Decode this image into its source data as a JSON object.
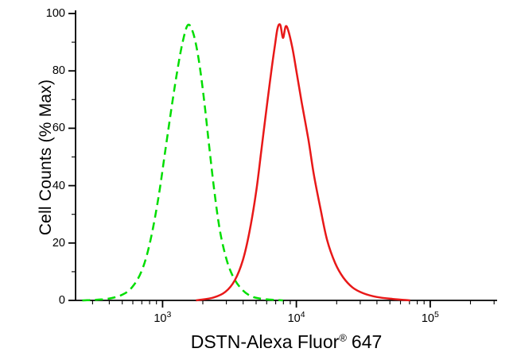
{
  "chart_data": {
    "type": "line",
    "title": "",
    "xlabel": {
      "text": "DSTN-Alexa Fluor",
      "registered_mark": "®",
      "suffix": "647"
    },
    "ylabel": "Cell Counts (% Max)",
    "x_scale": "log",
    "x_log_range": [
      2.35,
      5.5
    ],
    "ylim": [
      0,
      100
    ],
    "grid": false,
    "legend": "none",
    "y_ticks": [
      0,
      20,
      40,
      60,
      80,
      100
    ],
    "y_minor_ticks": [
      10,
      30,
      50,
      70,
      90
    ],
    "x_ticks": [
      {
        "base": "10",
        "exponent": "3",
        "log": 3
      },
      {
        "base": "10",
        "exponent": "4",
        "log": 4
      },
      {
        "base": "10",
        "exponent": "5",
        "log": 5
      }
    ],
    "series": [
      {
        "name": "control-green-dashed",
        "color": "#00dd00",
        "line_style": "dashed",
        "peak": {
          "x_log10": 3.19,
          "y_percent_max": 96
        },
        "points_log10x_y": [
          [
            2.4,
            0
          ],
          [
            2.58,
            0.5
          ],
          [
            2.7,
            2
          ],
          [
            2.78,
            5
          ],
          [
            2.85,
            11
          ],
          [
            2.91,
            21
          ],
          [
            2.97,
            36
          ],
          [
            3.02,
            52
          ],
          [
            3.07,
            68
          ],
          [
            3.11,
            80
          ],
          [
            3.15,
            90
          ],
          [
            3.19,
            96
          ],
          [
            3.23,
            93
          ],
          [
            3.27,
            84
          ],
          [
            3.31,
            70
          ],
          [
            3.35,
            53
          ],
          [
            3.39,
            37
          ],
          [
            3.43,
            24
          ],
          [
            3.48,
            14
          ],
          [
            3.53,
            8
          ],
          [
            3.59,
            4
          ],
          [
            3.66,
            1.5
          ],
          [
            3.75,
            0.5
          ],
          [
            3.9,
            0
          ]
        ]
      },
      {
        "name": "dstn-red-solid",
        "color": "#e81818",
        "line_style": "solid",
        "peak": {
          "x_log10": 3.88,
          "y_percent_max": 96
        },
        "points_log10x_y": [
          [
            3.25,
            0
          ],
          [
            3.38,
            1
          ],
          [
            3.47,
            3
          ],
          [
            3.54,
            7
          ],
          [
            3.6,
            14
          ],
          [
            3.65,
            24
          ],
          [
            3.7,
            38
          ],
          [
            3.74,
            53
          ],
          [
            3.78,
            68
          ],
          [
            3.81,
            79
          ],
          [
            3.84,
            89
          ],
          [
            3.86,
            95
          ],
          [
            3.88,
            96
          ],
          [
            3.9,
            91.5
          ],
          [
            3.92,
            95.5
          ],
          [
            3.94,
            94
          ],
          [
            3.97,
            88
          ],
          [
            4.0,
            80
          ],
          [
            4.04,
            69
          ],
          [
            4.09,
            56
          ],
          [
            4.13,
            44
          ],
          [
            4.18,
            32
          ],
          [
            4.23,
            21
          ],
          [
            4.29,
            13
          ],
          [
            4.35,
            8
          ],
          [
            4.42,
            4.5
          ],
          [
            4.5,
            2.5
          ],
          [
            4.6,
            1.2
          ],
          [
            4.72,
            0.5
          ],
          [
            4.85,
            0
          ]
        ]
      }
    ]
  }
}
